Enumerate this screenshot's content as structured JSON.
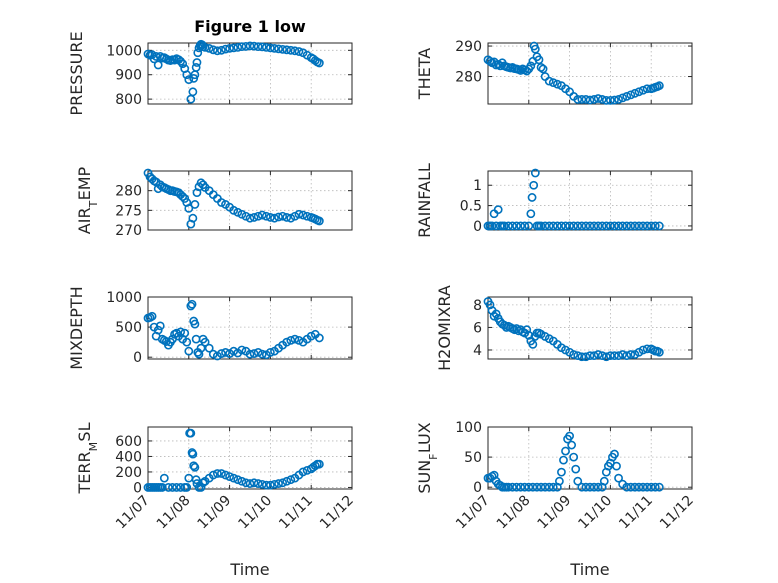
{
  "figure": {
    "title": "Figure 1 low",
    "xlabel": "Time"
  },
  "colors": {
    "marker": "#0072BD",
    "axes": "#262626",
    "grid": "#b8b8b8"
  },
  "chart_data": [
    {
      "type": "scatter",
      "ylabel": "PRESSURE",
      "ylabel_sub": "",
      "ylabel_tail": "",
      "title": "Figure 1 low",
      "xlim": [
        0,
        5
      ],
      "ylim": [
        780,
        1030
      ],
      "yticks": [
        800,
        900,
        1000
      ],
      "xticks": [],
      "xticklabels": [],
      "x": [
        0.0,
        0.05,
        0.1,
        0.15,
        0.2,
        0.25,
        0.3,
        0.35,
        0.4,
        0.45,
        0.5,
        0.55,
        0.6,
        0.65,
        0.7,
        0.75,
        0.8,
        0.85,
        0.9,
        0.95,
        1.0,
        1.05,
        1.1,
        1.12,
        1.15,
        1.18,
        1.2,
        1.22,
        1.25,
        1.28,
        1.3,
        1.33,
        1.35,
        1.4,
        1.5,
        1.6,
        1.7,
        1.8,
        1.9,
        2.0,
        2.1,
        2.2,
        2.3,
        2.4,
        2.5,
        2.6,
        2.7,
        2.8,
        2.9,
        3.0,
        3.1,
        3.2,
        3.3,
        3.4,
        3.5,
        3.6,
        3.7,
        3.8,
        3.9,
        4.0,
        4.05,
        4.1,
        4.15,
        4.2
      ],
      "y": [
        985,
        980,
        982,
        965,
        975,
        940,
        975,
        968,
        970,
        965,
        960,
        958,
        962,
        960,
        966,
        962,
        955,
        945,
        925,
        900,
        880,
        800,
        830,
        885,
        900,
        930,
        950,
        990,
        1010,
        1020,
        1025,
        1022,
        1015,
        1012,
        1008,
        1002,
        998,
        1000,
        1005,
        1008,
        1010,
        1012,
        1015,
        1016,
        1018,
        1017,
        1015,
        1014,
        1012,
        1010,
        1008,
        1006,
        1004,
        1002,
        1000,
        998,
        995,
        990,
        980,
        970,
        965,
        958,
        952,
        948
      ]
    },
    {
      "type": "scatter",
      "ylabel": "THETA",
      "ylabel_sub": "",
      "ylabel_tail": "",
      "xlim": [
        0,
        5
      ],
      "ylim": [
        271,
        291
      ],
      "yticks": [
        280,
        290
      ],
      "xticks": [],
      "xticklabels": [],
      "x": [
        0.0,
        0.05,
        0.1,
        0.15,
        0.2,
        0.25,
        0.3,
        0.35,
        0.4,
        0.45,
        0.5,
        0.55,
        0.6,
        0.65,
        0.7,
        0.75,
        0.8,
        0.85,
        0.9,
        0.95,
        1.0,
        1.05,
        1.1,
        1.13,
        1.16,
        1.2,
        1.25,
        1.3,
        1.35,
        1.4,
        1.5,
        1.6,
        1.7,
        1.8,
        1.9,
        2.0,
        2.1,
        2.2,
        2.3,
        2.4,
        2.5,
        2.6,
        2.7,
        2.8,
        2.9,
        3.0,
        3.1,
        3.2,
        3.3,
        3.4,
        3.5,
        3.6,
        3.7,
        3.8,
        3.9,
        4.0,
        4.05,
        4.1,
        4.15,
        4.2
      ],
      "y": [
        285.5,
        285,
        284.5,
        284.8,
        283.8,
        284,
        283.5,
        284.5,
        283.5,
        283.2,
        283,
        282.8,
        283,
        282.6,
        282.5,
        282.3,
        282,
        282.5,
        282.2,
        281.8,
        282.5,
        283.5,
        285,
        290,
        289,
        286.5,
        285.5,
        283,
        282.5,
        280,
        278.5,
        278,
        277.5,
        277,
        276,
        275,
        273.5,
        272.5,
        272.5,
        272.5,
        272.3,
        272.5,
        272.8,
        272.5,
        272.2,
        272.2,
        272.3,
        272.5,
        273,
        273.5,
        274,
        274.5,
        275,
        275.5,
        276,
        276,
        276.2,
        276.5,
        276.7,
        277
      ]
    },
    {
      "type": "scatter",
      "ylabel": "AIR",
      "ylabel_sub": "T",
      "ylabel_tail": "EMP",
      "xlim": [
        0,
        5
      ],
      "ylim": [
        270,
        285
      ],
      "yticks": [
        270,
        275,
        280
      ],
      "xticks": [],
      "xticklabels": [],
      "x": [
        0.0,
        0.05,
        0.1,
        0.15,
        0.2,
        0.25,
        0.3,
        0.35,
        0.4,
        0.45,
        0.5,
        0.55,
        0.6,
        0.65,
        0.7,
        0.75,
        0.8,
        0.85,
        0.9,
        0.95,
        1.0,
        1.05,
        1.1,
        1.15,
        1.2,
        1.25,
        1.3,
        1.35,
        1.4,
        1.5,
        1.6,
        1.7,
        1.8,
        1.9,
        2.0,
        2.1,
        2.2,
        2.3,
        2.4,
        2.5,
        2.6,
        2.7,
        2.8,
        2.9,
        3.0,
        3.1,
        3.2,
        3.3,
        3.4,
        3.5,
        3.6,
        3.7,
        3.8,
        3.9,
        4.0,
        4.05,
        4.1,
        4.15,
        4.2
      ],
      "y": [
        284.5,
        283.5,
        283,
        282.5,
        282.2,
        280.5,
        281.5,
        281,
        280.8,
        280.5,
        280.3,
        280,
        280,
        279.8,
        279.7,
        279.5,
        279,
        278.5,
        278,
        277,
        275.5,
        271.5,
        273,
        276.5,
        279.5,
        281,
        282,
        281.5,
        280.8,
        280,
        279,
        278,
        277,
        276.5,
        275.8,
        275,
        274.5,
        274,
        273.5,
        273,
        273.2,
        273.5,
        273.8,
        273.5,
        273.2,
        273,
        273.3,
        273.5,
        273.2,
        273,
        273.5,
        274,
        273.8,
        273.5,
        273.2,
        273,
        272.8,
        272.5,
        272.3
      ]
    },
    {
      "type": "scatter",
      "ylabel": "RAINFALL",
      "ylabel_sub": "",
      "ylabel_tail": "",
      "xlim": [
        0,
        5
      ],
      "ylim": [
        -0.1,
        1.35
      ],
      "yticks": [
        0,
        0.5,
        1
      ],
      "xticks": [],
      "xticklabels": [],
      "x": [
        0.0,
        0.05,
        0.1,
        0.15,
        0.2,
        0.25,
        0.3,
        0.35,
        0.4,
        0.5,
        0.6,
        0.7,
        0.8,
        0.9,
        1.0,
        1.05,
        1.08,
        1.12,
        1.16,
        1.2,
        1.25,
        1.3,
        1.4,
        1.5,
        1.6,
        1.7,
        1.8,
        1.9,
        2.0,
        2.1,
        2.2,
        2.3,
        2.4,
        2.5,
        2.6,
        2.7,
        2.8,
        2.9,
        3.0,
        3.1,
        3.2,
        3.3,
        3.4,
        3.5,
        3.6,
        3.7,
        3.8,
        3.9,
        4.0,
        4.1,
        4.2
      ],
      "y": [
        0,
        0,
        0,
        0.3,
        0,
        0.4,
        0,
        0,
        0,
        0,
        0,
        0,
        0,
        0,
        0,
        0.3,
        0.7,
        1.0,
        1.3,
        0,
        0,
        0,
        0,
        0,
        0,
        0,
        0,
        0,
        0,
        0,
        0,
        0,
        0,
        0,
        0,
        0,
        0,
        0,
        0,
        0,
        0,
        0,
        0,
        0,
        0,
        0,
        0,
        0,
        0,
        0,
        0
      ]
    },
    {
      "type": "scatter",
      "ylabel": "MIXDEPTH",
      "ylabel_sub": "",
      "ylabel_tail": "",
      "xlim": [
        0,
        5
      ],
      "ylim": [
        -30,
        1000
      ],
      "yticks": [
        0,
        500,
        1000
      ],
      "xticks": [],
      "xticklabels": [],
      "x": [
        0.0,
        0.05,
        0.1,
        0.15,
        0.2,
        0.25,
        0.3,
        0.35,
        0.4,
        0.45,
        0.5,
        0.55,
        0.6,
        0.65,
        0.7,
        0.75,
        0.8,
        0.85,
        0.9,
        0.95,
        1.0,
        1.05,
        1.08,
        1.12,
        1.15,
        1.18,
        1.22,
        1.25,
        1.3,
        1.35,
        1.4,
        1.5,
        1.6,
        1.7,
        1.8,
        1.9,
        2.0,
        2.1,
        2.2,
        2.3,
        2.4,
        2.5,
        2.6,
        2.7,
        2.8,
        2.9,
        3.0,
        3.1,
        3.2,
        3.3,
        3.4,
        3.5,
        3.6,
        3.7,
        3.8,
        3.9,
        4.0,
        4.1,
        4.2
      ],
      "y": [
        650,
        660,
        680,
        500,
        350,
        450,
        520,
        300,
        280,
        260,
        200,
        250,
        300,
        380,
        400,
        350,
        420,
        300,
        400,
        250,
        100,
        850,
        880,
        600,
        550,
        300,
        80,
        50,
        150,
        300,
        250,
        150,
        50,
        20,
        60,
        80,
        60,
        100,
        70,
        120,
        100,
        50,
        60,
        80,
        50,
        40,
        80,
        100,
        150,
        200,
        250,
        280,
        300,
        280,
        250,
        300,
        350,
        380,
        320
      ]
    },
    {
      "type": "scatter",
      "ylabel": "H2OMIXRA",
      "ylabel_sub": "",
      "ylabel_tail": "",
      "xlim": [
        0,
        5
      ],
      "ylim": [
        3.2,
        8.7
      ],
      "yticks": [
        4,
        6,
        8
      ],
      "xticks": [],
      "xticklabels": [],
      "x": [
        0.0,
        0.05,
        0.1,
        0.15,
        0.2,
        0.25,
        0.3,
        0.35,
        0.4,
        0.45,
        0.5,
        0.55,
        0.6,
        0.65,
        0.7,
        0.75,
        0.8,
        0.85,
        0.9,
        0.95,
        1.0,
        1.05,
        1.1,
        1.15,
        1.2,
        1.25,
        1.3,
        1.4,
        1.5,
        1.6,
        1.7,
        1.8,
        1.9,
        2.0,
        2.1,
        2.2,
        2.3,
        2.4,
        2.5,
        2.6,
        2.7,
        2.8,
        2.9,
        3.0,
        3.1,
        3.2,
        3.3,
        3.4,
        3.5,
        3.6,
        3.7,
        3.8,
        3.9,
        4.0,
        4.05,
        4.1,
        4.15,
        4.2
      ],
      "y": [
        8.3,
        8.0,
        7.5,
        7.0,
        7.2,
        6.8,
        6.5,
        6.3,
        6.2,
        6.0,
        6.1,
        6.0,
        5.9,
        5.8,
        5.9,
        5.7,
        5.8,
        5.6,
        5.5,
        5.8,
        5.3,
        4.8,
        4.5,
        5.2,
        5.5,
        5.5,
        5.4,
        5.2,
        5.0,
        4.8,
        4.5,
        4.2,
        4.0,
        3.8,
        3.6,
        3.5,
        3.4,
        3.4,
        3.5,
        3.5,
        3.6,
        3.5,
        3.4,
        3.5,
        3.5,
        3.5,
        3.6,
        3.5,
        3.6,
        3.6,
        3.8,
        4.0,
        4.1,
        4.1,
        4.0,
        3.9,
        3.9,
        3.8
      ]
    },
    {
      "type": "scatter",
      "ylabel": "TERR",
      "ylabel_sub": "M",
      "ylabel_tail": "SL",
      "xlim": [
        0,
        5
      ],
      "ylim": [
        -20,
        780
      ],
      "yticks": [
        0,
        200,
        400,
        600
      ],
      "xticks": [
        0,
        1,
        2,
        3,
        4,
        5
      ],
      "xticklabels": [
        "11/07",
        "11/08",
        "11/09",
        "11/10",
        "11/11",
        "11/12"
      ],
      "x": [
        0.0,
        0.05,
        0.1,
        0.15,
        0.2,
        0.25,
        0.3,
        0.35,
        0.4,
        0.5,
        0.6,
        0.7,
        0.8,
        0.9,
        0.95,
        1.0,
        1.02,
        1.05,
        1.08,
        1.1,
        1.12,
        1.15,
        1.18,
        1.2,
        1.25,
        1.3,
        1.35,
        1.4,
        1.5,
        1.6,
        1.7,
        1.8,
        1.9,
        2.0,
        2.1,
        2.2,
        2.3,
        2.4,
        2.5,
        2.6,
        2.7,
        2.8,
        2.9,
        3.0,
        3.1,
        3.2,
        3.3,
        3.4,
        3.5,
        3.6,
        3.7,
        3.8,
        3.9,
        4.0,
        4.05,
        4.1,
        4.15,
        4.2
      ],
      "y": [
        0,
        0,
        0,
        0,
        0,
        0,
        0,
        0,
        120,
        0,
        0,
        0,
        0,
        0,
        0,
        120,
        700,
        700,
        450,
        430,
        280,
        260,
        100,
        50,
        0,
        0,
        60,
        80,
        120,
        160,
        180,
        180,
        160,
        140,
        120,
        100,
        80,
        60,
        50,
        60,
        50,
        40,
        30,
        30,
        40,
        50,
        60,
        80,
        100,
        120,
        160,
        200,
        220,
        240,
        260,
        280,
        300,
        300
      ]
    },
    {
      "type": "scatter",
      "ylabel": "SUN",
      "ylabel_sub": "F",
      "ylabel_tail": "LUX",
      "xlim": [
        0,
        5
      ],
      "ylim": [
        -3,
        100
      ],
      "yticks": [
        0,
        50,
        100
      ],
      "xticks": [
        0,
        1,
        2,
        3,
        4,
        5
      ],
      "xticklabels": [
        "11/07",
        "11/08",
        "11/09",
        "11/10",
        "11/11",
        "11/12"
      ],
      "x": [
        0.0,
        0.05,
        0.1,
        0.15,
        0.2,
        0.25,
        0.3,
        0.35,
        0.4,
        0.45,
        0.5,
        0.6,
        0.7,
        0.8,
        0.9,
        1.0,
        1.1,
        1.2,
        1.3,
        1.4,
        1.5,
        1.6,
        1.7,
        1.75,
        1.8,
        1.85,
        1.9,
        1.95,
        2.0,
        2.05,
        2.1,
        2.15,
        2.2,
        2.3,
        2.4,
        2.5,
        2.6,
        2.7,
        2.8,
        2.85,
        2.9,
        2.95,
        3.0,
        3.05,
        3.1,
        3.15,
        3.2,
        3.3,
        3.4,
        3.5,
        3.6,
        3.7,
        3.8,
        3.9,
        4.0,
        4.1,
        4.2
      ],
      "y": [
        15,
        15,
        18,
        20,
        10,
        5,
        3,
        0,
        0,
        0,
        0,
        0,
        0,
        0,
        0,
        0,
        0,
        0,
        0,
        0,
        0,
        0,
        0,
        10,
        25,
        45,
        60,
        80,
        85,
        70,
        50,
        30,
        10,
        0,
        0,
        0,
        0,
        0,
        0,
        10,
        25,
        35,
        40,
        50,
        55,
        35,
        15,
        5,
        0,
        0,
        0,
        0,
        0,
        0,
        0,
        0,
        0
      ]
    }
  ]
}
